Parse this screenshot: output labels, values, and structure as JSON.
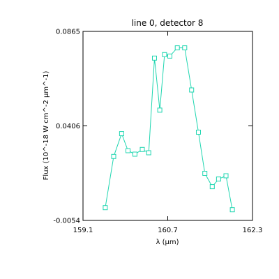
{
  "chart_data": {
    "type": "line",
    "title": "line 0, detector 8",
    "xlabel": "λ (μm)",
    "ylabel": "Flux (10^-18 W cm^-2 μm^-1)",
    "xlim": [
      159.1,
      162.3
    ],
    "ylim": [
      -0.0054,
      0.0865
    ],
    "xticks": [
      "159.1",
      "160.7",
      "162.3"
    ],
    "yticks": [
      "-0.0054",
      "0.0406",
      "0.0865"
    ],
    "grid": false,
    "series": [
      {
        "color": "#1fd6b0",
        "marker": "square",
        "x": [
          159.52,
          159.68,
          159.83,
          159.95,
          160.08,
          160.22,
          160.34,
          160.45,
          160.55,
          160.64,
          160.74,
          160.88,
          161.02,
          161.15,
          161.28,
          161.4,
          161.54,
          161.66,
          161.8,
          161.92
        ],
        "y": [
          0.0008,
          0.0257,
          0.0368,
          0.0285,
          0.0268,
          0.0291,
          0.0275,
          0.0735,
          0.0482,
          0.0752,
          0.0745,
          0.0785,
          0.0785,
          0.058,
          0.0375,
          0.0175,
          0.011,
          0.0147,
          0.0163,
          -0.0002
        ]
      }
    ]
  }
}
